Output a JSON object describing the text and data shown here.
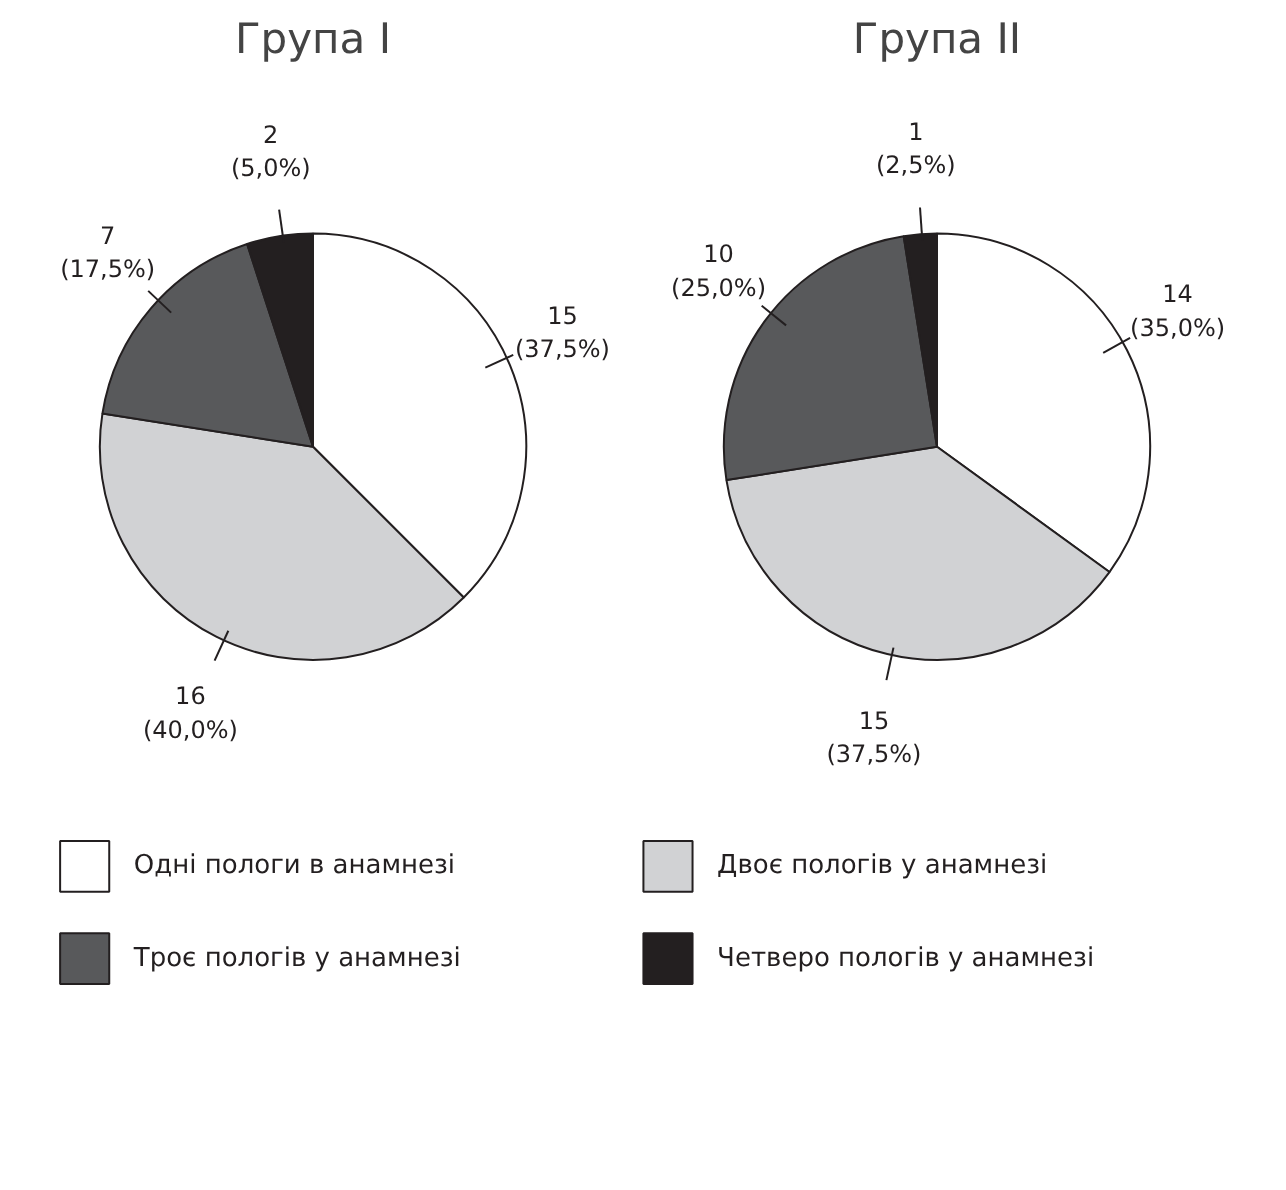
{
  "chart_data": [
    {
      "type": "pie",
      "title": "Група I",
      "categories": [
        "Одні пологи в анамнезі",
        "Двоє пологів у анамнезі",
        "Троє пологів у анамнезі",
        "Четверо пологів у анамнезі"
      ],
      "values": [
        15,
        16,
        7,
        2
      ],
      "colors": [
        "#ffffff",
        "#d1d2d4",
        "#58595b",
        "#231f20"
      ],
      "value_labels": [
        "15\n(37,5%)",
        "16\n(40,0%)",
        "7\n(17,5%)",
        "2\n(5,0%)"
      ],
      "legend": "bottom"
    },
    {
      "type": "pie",
      "title": "Група II",
      "values": [
        14,
        15,
        10,
        1
      ],
      "colors": [
        "#ffffff",
        "#d1d2d4",
        "#58595b",
        "#231f20"
      ],
      "value_labels": [
        "14\n(35,0%)",
        "15\n(37,5%)",
        "10\n(25,0%)",
        "1\n(2,5%)"
      ]
    }
  ]
}
